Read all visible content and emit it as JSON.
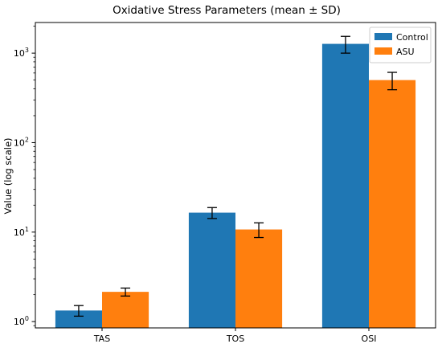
{
  "chart_data": {
    "type": "bar",
    "title": "Oxidative Stress Parameters (mean ± SD)",
    "xlabel": "",
    "ylabel": "Value (log scale)",
    "yscale": "log",
    "ylim": [
      0.85,
      2200
    ],
    "yticks": [
      1,
      10,
      100,
      1000
    ],
    "ytick_labels": [
      {
        "base": "10",
        "exp": "0"
      },
      {
        "base": "10",
        "exp": "1"
      },
      {
        "base": "10",
        "exp": "2"
      },
      {
        "base": "10",
        "exp": "3"
      }
    ],
    "categories": [
      "TAS",
      "TOS",
      "OSI"
    ],
    "series": [
      {
        "name": "Control",
        "color": "#1f77b4",
        "values": [
          1.33,
          16.5,
          1270
        ],
        "errors": [
          0.18,
          2.3,
          270
        ]
      },
      {
        "name": "ASU",
        "color": "#ff7f0e",
        "values": [
          2.15,
          10.7,
          500
        ],
        "errors": [
          0.22,
          2.0,
          110
        ]
      }
    ],
    "legend": {
      "placement": "top-right"
    },
    "grid": false
  }
}
